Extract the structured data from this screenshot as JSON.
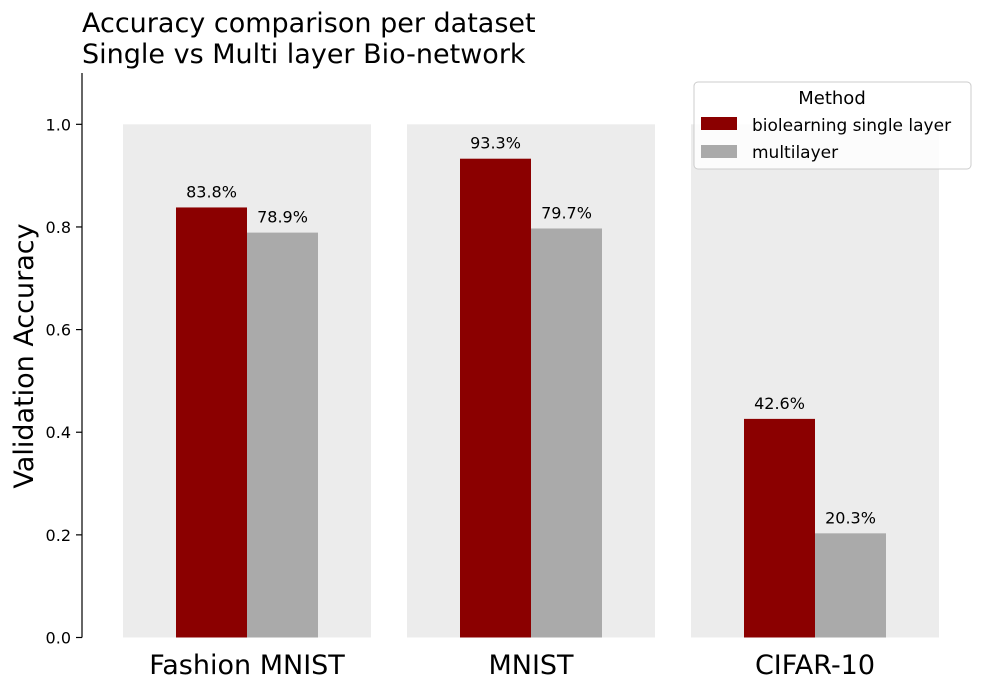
{
  "chart_data": {
    "type": "bar",
    "title": [
      "Accuracy comparison per dataset",
      "Single vs Multi layer Bio-network"
    ],
    "ylabel": "Validation Accuracy",
    "xlabel": "",
    "categories": [
      "Fashion MNIST",
      "MNIST",
      "CIFAR-10"
    ],
    "ylim": [
      0,
      1.1
    ],
    "yticks": [
      "0.0",
      "0.2",
      "0.4",
      "0.6",
      "0.8",
      "1.0"
    ],
    "ytick_values": [
      0,
      0.2,
      0.4,
      0.6,
      0.8,
      1.0
    ],
    "background_band_top": 1.0,
    "grid": false,
    "legend": {
      "title": "Method",
      "placement": "top-right"
    },
    "series": [
      {
        "name": "biolearning single layer",
        "color": "#8b0000",
        "values": [
          0.838,
          0.933,
          0.426
        ],
        "labels": [
          "83.8%",
          "93.3%",
          "42.6%"
        ]
      },
      {
        "name": "multilayer",
        "color": "#aaaaaa",
        "values": [
          0.789,
          0.797,
          0.203
        ],
        "labels": [
          "78.9%",
          "79.7%",
          "20.3%"
        ]
      }
    ],
    "band_color": "#ececec"
  }
}
